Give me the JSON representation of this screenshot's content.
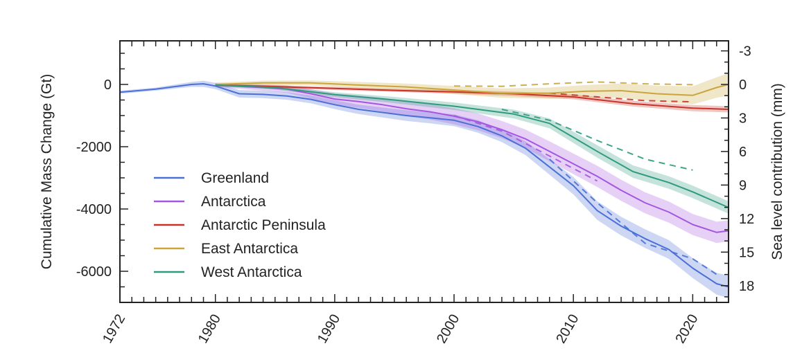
{
  "chart_data": {
    "type": "line",
    "x_axis": {
      "range": [
        1972,
        2023
      ],
      "ticks": [
        "1972",
        "1980",
        "1990",
        "2000",
        "2010",
        "2020"
      ],
      "tick_values": [
        1972,
        1980,
        1990,
        2000,
        2010,
        2020
      ],
      "label_rotation": "-60deg"
    },
    "y_left": {
      "label": "Cumulative Mass Change (Gt)",
      "range": [
        -7000,
        1400
      ],
      "ticks": [
        "0",
        "-2000",
        "-4000",
        "-6000"
      ],
      "tick_values": [
        0,
        -2000,
        -4000,
        -6000
      ]
    },
    "y_right": {
      "label": "Sea level contribution (mm)",
      "ticks": [
        "-3",
        "0",
        "3",
        "6",
        "9",
        "12",
        "15",
        "18"
      ],
      "tick_values": [
        -3,
        0,
        3,
        6,
        9,
        12,
        15,
        18
      ]
    },
    "legend_position": "lower-left",
    "series": [
      {
        "name": "Greenland",
        "color": "#4a6fd6",
        "x": [
          1972,
          1975,
          1978,
          1979,
          1980,
          1982,
          1984,
          1986,
          1988,
          1990,
          1992,
          1994,
          1996,
          1998,
          2000,
          2002,
          2004,
          2006,
          2008,
          2010,
          2012,
          2014,
          2016,
          2018,
          2020,
          2022,
          2023
        ],
        "y": [
          -250,
          -150,
          0,
          20,
          -50,
          -300,
          -320,
          -370,
          -480,
          -650,
          -800,
          -900,
          -1000,
          -1070,
          -1150,
          -1350,
          -1650,
          -2050,
          -2650,
          -3250,
          -4050,
          -4550,
          -4950,
          -5300,
          -5900,
          -6400,
          -6500
        ],
        "band": [
          50,
          50,
          80,
          100,
          100,
          120,
          120,
          120,
          130,
          140,
          150,
          160,
          170,
          180,
          190,
          200,
          200,
          220,
          250,
          280,
          300,
          300,
          300,
          300,
          320,
          350,
          360
        ]
      },
      {
        "name": "Antarctica",
        "color": "#a456e0",
        "x": [
          1980,
          1982,
          1984,
          1986,
          1988,
          1990,
          1992,
          1994,
          1996,
          1998,
          2000,
          2002,
          2004,
          2006,
          2008,
          2010,
          2012,
          2014,
          2016,
          2018,
          2020,
          2022,
          2023
        ],
        "y": [
          -20,
          -60,
          -100,
          -150,
          -300,
          -470,
          -550,
          -650,
          -780,
          -880,
          -1020,
          -1200,
          -1450,
          -1750,
          -2150,
          -2550,
          -2950,
          -3400,
          -3800,
          -4100,
          -4500,
          -4750,
          -4700
        ],
        "band": [
          60,
          80,
          100,
          120,
          150,
          180,
          200,
          220,
          240,
          250,
          260,
          270,
          280,
          300,
          320,
          330,
          340,
          340,
          340,
          340,
          340,
          340,
          340
        ]
      },
      {
        "name": "Antarctic Peninsula",
        "color": "#c83228",
        "x": [
          1980,
          1985,
          1990,
          1995,
          2000,
          2005,
          2010,
          2015,
          2020,
          2023
        ],
        "y": [
          -20,
          -70,
          -130,
          -190,
          -240,
          -300,
          -400,
          -620,
          -760,
          -800
        ],
        "band": [
          40,
          40,
          50,
          50,
          60,
          70,
          80,
          90,
          100,
          100
        ]
      },
      {
        "name": "East Antarctica",
        "color": "#c9a53a",
        "x": [
          1980,
          1984,
          1988,
          1992,
          1996,
          2000,
          2004,
          2008,
          2011,
          2014,
          2017,
          2020,
          2022,
          2023
        ],
        "y": [
          0,
          50,
          50,
          -20,
          -80,
          -180,
          -280,
          -280,
          -220,
          -200,
          -300,
          -350,
          -100,
          0
        ],
        "band": [
          60,
          70,
          80,
          100,
          110,
          130,
          150,
          180,
          200,
          230,
          260,
          290,
          330,
          360
        ]
      },
      {
        "name": "West Antarctica",
        "color": "#2e9a7e",
        "x": [
          1980,
          1985,
          1990,
          1995,
          2000,
          2005,
          2008,
          2010,
          2012,
          2015,
          2018,
          2020,
          2023
        ],
        "y": [
          -20,
          -100,
          -330,
          -500,
          -700,
          -950,
          -1250,
          -1700,
          -2150,
          -2800,
          -3150,
          -3450,
          -3950
        ],
        "band": [
          40,
          60,
          80,
          100,
          120,
          140,
          160,
          180,
          200,
          200,
          200,
          200,
          200
        ]
      }
    ],
    "dashed_reference": [
      {
        "name": "",
        "color": "#4a6fd6",
        "x": [
          2008,
          2012,
          2016,
          2020,
          2022
        ],
        "y": [
          -2400,
          -3800,
          -5100,
          -5600,
          -6100
        ]
      },
      {
        "name": "",
        "color": "#a456e0",
        "x": [
          2000,
          2004,
          2008,
          2012
        ],
        "y": [
          -1000,
          -1500,
          -2300,
          -3100
        ]
      },
      {
        "name": "",
        "color": "#c83228",
        "x": [
          2008,
          2012,
          2016,
          2020
        ],
        "y": [
          -280,
          -400,
          -520,
          -560
        ]
      },
      {
        "name": "",
        "color": "#c9a53a",
        "x": [
          2000,
          2004,
          2008,
          2012,
          2016,
          2020
        ],
        "y": [
          -50,
          -60,
          20,
          80,
          20,
          -10
        ]
      },
      {
        "name": "",
        "color": "#2e9a7e",
        "x": [
          2004,
          2008,
          2012,
          2016,
          2020
        ],
        "y": [
          -800,
          -1150,
          -1800,
          -2400,
          -2750
        ]
      }
    ]
  }
}
